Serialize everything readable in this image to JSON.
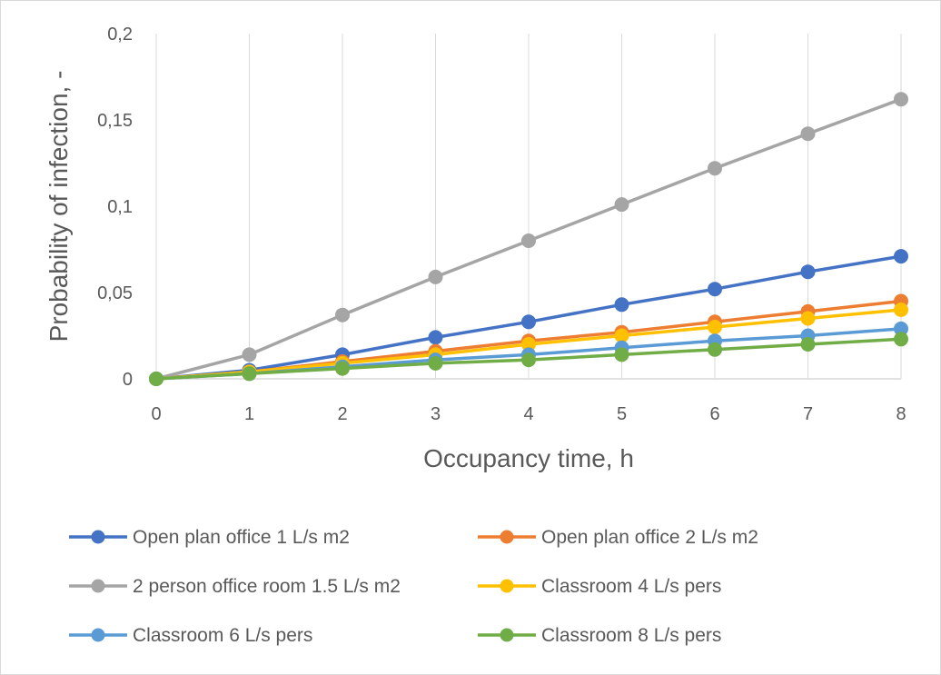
{
  "chart_data": {
    "type": "line",
    "xlabel": "Occupancy time, h",
    "ylabel": "Probability of infection, -",
    "x": [
      0,
      1,
      2,
      3,
      4,
      5,
      6,
      7,
      8
    ],
    "xlim": [
      0,
      8
    ],
    "ylim": [
      0,
      0.2
    ],
    "x_tick_labels": [
      "0",
      "1",
      "2",
      "3",
      "4",
      "5",
      "6",
      "7",
      "8"
    ],
    "y_ticks": [
      0,
      0.05,
      0.1,
      0.15,
      0.2
    ],
    "y_tick_labels": [
      "0",
      "0,05",
      "0,1",
      "0,15",
      "0,2"
    ],
    "grid": "vertical",
    "legend_position": "bottom",
    "series": [
      {
        "name": "Open plan office 1 L/s m2",
        "color": "#4472C4",
        "values": [
          0,
          0.005,
          0.014,
          0.024,
          0.033,
          0.043,
          0.052,
          0.062,
          0.071
        ]
      },
      {
        "name": "Open plan office 2 L/s m2",
        "color": "#ED7D31",
        "values": [
          0,
          0.004,
          0.01,
          0.016,
          0.022,
          0.027,
          0.033,
          0.039,
          0.045
        ]
      },
      {
        "name": "2 person office room 1.5 L/s m2",
        "color": "#A5A5A5",
        "values": [
          0,
          0.014,
          0.037,
          0.059,
          0.08,
          0.101,
          0.122,
          0.142,
          0.162
        ]
      },
      {
        "name": "Classroom 4 L/s pers",
        "color": "#FFC000",
        "values": [
          0,
          0.004,
          0.009,
          0.014,
          0.02,
          0.025,
          0.03,
          0.035,
          0.04
        ]
      },
      {
        "name": "Classroom 6 L/s pers",
        "color": "#5B9BD5",
        "values": [
          0,
          0.003,
          0.007,
          0.011,
          0.014,
          0.018,
          0.022,
          0.025,
          0.029
        ]
      },
      {
        "name": "Classroom 8 L/s pers",
        "color": "#70AD47",
        "values": [
          0,
          0.003,
          0.006,
          0.009,
          0.011,
          0.014,
          0.017,
          0.02,
          0.023
        ]
      }
    ]
  }
}
